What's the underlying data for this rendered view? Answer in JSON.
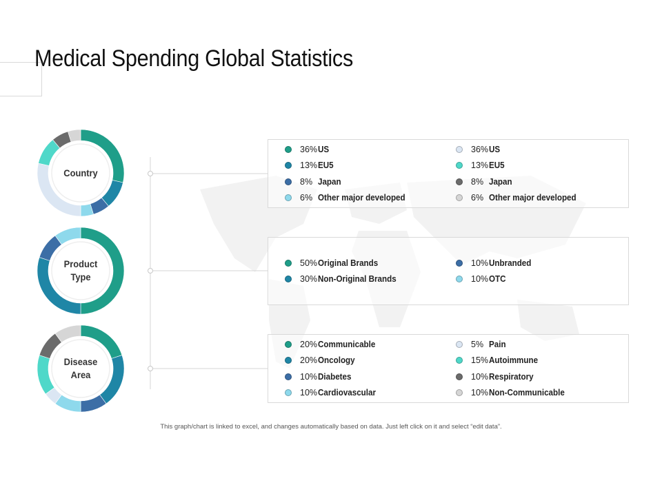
{
  "title": "Medical Spending Global Statistics",
  "footnote": "This graph/chart is linked to excel, and changes automatically based on data. Just left click on it and select “edit data”.",
  "colors": {
    "teal": "#1f9e89",
    "blue_teal": "#1f86a6",
    "steel_blue": "#3c6ea6",
    "light_cyan": "#8ed9ec",
    "pale_blue": "#dbe6f3",
    "aqua": "#4fd8c9",
    "dark_gray": "#6b6b6b",
    "light_gray": "#d6d6d6"
  },
  "chart_data": [
    {
      "type": "pie",
      "title": "Country",
      "series": [
        {
          "name": "US",
          "value": 36,
          "color": "#1f9e89"
        },
        {
          "name": "EU5",
          "value": 13,
          "color": "#1f86a6"
        },
        {
          "name": "Japan",
          "value": 8,
          "color": "#3c6ea6"
        },
        {
          "name": "Other major developed",
          "value": 6,
          "color": "#8ed9ec"
        },
        {
          "name": "US",
          "value": 36,
          "color": "#dbe6f3"
        },
        {
          "name": "EU5",
          "value": 13,
          "color": "#4fd8c9"
        },
        {
          "name": "Japan",
          "value": 8,
          "color": "#6b6b6b"
        },
        {
          "name": "Other major developed",
          "value": 6,
          "color": "#d6d6d6"
        }
      ]
    },
    {
      "type": "pie",
      "title": "Product\nType",
      "series": [
        {
          "name": "Original Brands",
          "value": 50,
          "color": "#1f9e89"
        },
        {
          "name": "Non-Original Brands",
          "value": 30,
          "color": "#1f86a6"
        },
        {
          "name": "Unbranded",
          "value": 10,
          "color": "#3c6ea6"
        },
        {
          "name": "OTC",
          "value": 10,
          "color": "#8ed9ec"
        }
      ]
    },
    {
      "type": "pie",
      "title": "Disease\nArea",
      "series": [
        {
          "name": "Communicable",
          "value": 20,
          "color": "#1f9e89"
        },
        {
          "name": "Oncology",
          "value": 20,
          "color": "#1f86a6"
        },
        {
          "name": "Diabetes",
          "value": 10,
          "color": "#3c6ea6"
        },
        {
          "name": "Cardiovascular",
          "value": 10,
          "color": "#8ed9ec"
        },
        {
          "name": "Pain",
          "value": 5,
          "color": "#dbe6f3"
        },
        {
          "name": "Autoimmune",
          "value": 15,
          "color": "#4fd8c9"
        },
        {
          "name": "Respiratory",
          "value": 10,
          "color": "#6b6b6b"
        },
        {
          "name": "Non-Communicable",
          "value": 10,
          "color": "#d6d6d6"
        }
      ]
    }
  ],
  "legends": [
    {
      "items": [
        {
          "pct": "36%",
          "label": "US",
          "color": "#1f9e89"
        },
        {
          "pct": "13%",
          "label": "EU5",
          "color": "#1f86a6"
        },
        {
          "pct": "8%",
          "label": "Japan",
          "color": "#3c6ea6"
        },
        {
          "pct": "6%",
          "label": "Other major developed",
          "color": "#8ed9ec"
        },
        {
          "pct": "36%",
          "label": "US",
          "color": "#dbe6f3"
        },
        {
          "pct": "13%",
          "label": "EU5",
          "color": "#4fd8c9"
        },
        {
          "pct": "8%",
          "label": "Japan",
          "color": "#6b6b6b"
        },
        {
          "pct": "6%",
          "label": "Other major developed",
          "color": "#d6d6d6"
        }
      ]
    },
    {
      "items": [
        {
          "pct": "50%",
          "label": "Original Brands",
          "color": "#1f9e89"
        },
        {
          "pct": "30%",
          "label": "Non-Original Brands",
          "color": "#1f86a6"
        },
        {
          "pct": "10%",
          "label": "Unbranded",
          "color": "#3c6ea6"
        },
        {
          "pct": "10%",
          "label": "OTC",
          "color": "#8ed9ec"
        }
      ]
    },
    {
      "items": [
        {
          "pct": "20%",
          "label": "Communicable",
          "color": "#1f9e89"
        },
        {
          "pct": "20%",
          "label": "Oncology",
          "color": "#1f86a6"
        },
        {
          "pct": "10%",
          "label": "Diabetes",
          "color": "#3c6ea6"
        },
        {
          "pct": "10%",
          "label": "Cardiovascular",
          "color": "#8ed9ec"
        },
        {
          "pct": "5%",
          "label": "Pain",
          "color": "#dbe6f3"
        },
        {
          "pct": "15%",
          "label": "Autoimmune",
          "color": "#4fd8c9"
        },
        {
          "pct": "10%",
          "label": "Respiratory",
          "color": "#6b6b6b"
        },
        {
          "pct": "10%",
          "label": "Non-Communicable",
          "color": "#d6d6d6"
        }
      ]
    }
  ]
}
